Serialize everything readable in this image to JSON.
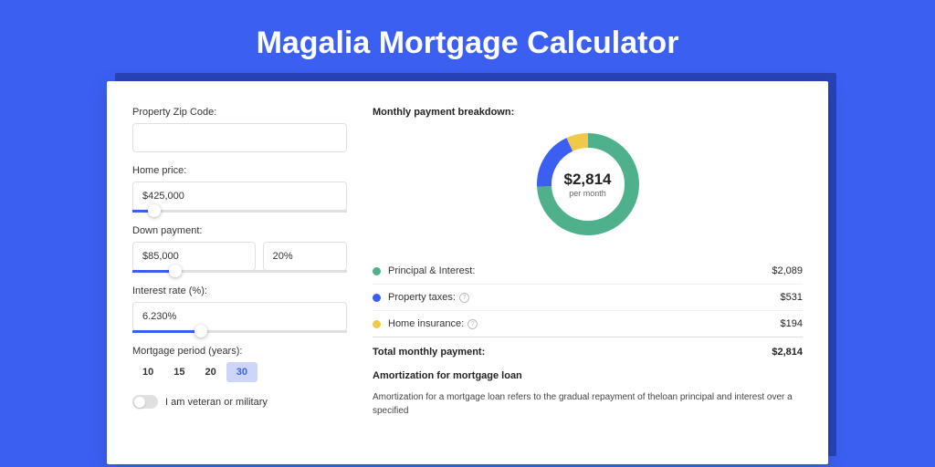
{
  "title": "Magalia Mortgage Calculator",
  "colors": {
    "page_bg": "#3b5ff1",
    "card_shadow": "#2743b8",
    "slider_fill": "#3b5ff1",
    "active_tab_bg": "#cdd6f8",
    "active_tab_text": "#3b5ff1"
  },
  "form": {
    "zip": {
      "label": "Property Zip Code:",
      "value": ""
    },
    "price": {
      "label": "Home price:",
      "value": "$425,000",
      "slider_pct": 10
    },
    "down": {
      "label": "Down payment:",
      "amount": "$85,000",
      "percent": "20%",
      "slider_pct": 20
    },
    "rate": {
      "label": "Interest rate (%):",
      "value": "6.230%",
      "slider_pct": 32
    },
    "period": {
      "label": "Mortgage period (years):",
      "options": [
        "10",
        "15",
        "20",
        "30"
      ],
      "active_index": 3
    },
    "veteran": {
      "label": "I am veteran or military",
      "on": false
    }
  },
  "breakdown": {
    "title": "Monthly payment breakdown:",
    "center_amount": "$2,814",
    "center_sub": "per month",
    "items": [
      {
        "label": "Principal & Interest:",
        "value": "$2,089",
        "color": "#4fb08c",
        "info": false,
        "pct": 74.2
      },
      {
        "label": "Property taxes:",
        "value": "$531",
        "color": "#3b5ff1",
        "info": true,
        "pct": 18.9
      },
      {
        "label": "Home insurance:",
        "value": "$194",
        "color": "#f2c84b",
        "info": true,
        "pct": 6.9
      }
    ],
    "total": {
      "label": "Total monthly payment:",
      "value": "$2,814"
    }
  },
  "amortization": {
    "title": "Amortization for mortgage loan",
    "text": "Amortization for a mortgage loan refers to the gradual repayment of theloan principal and interest over a specified"
  }
}
